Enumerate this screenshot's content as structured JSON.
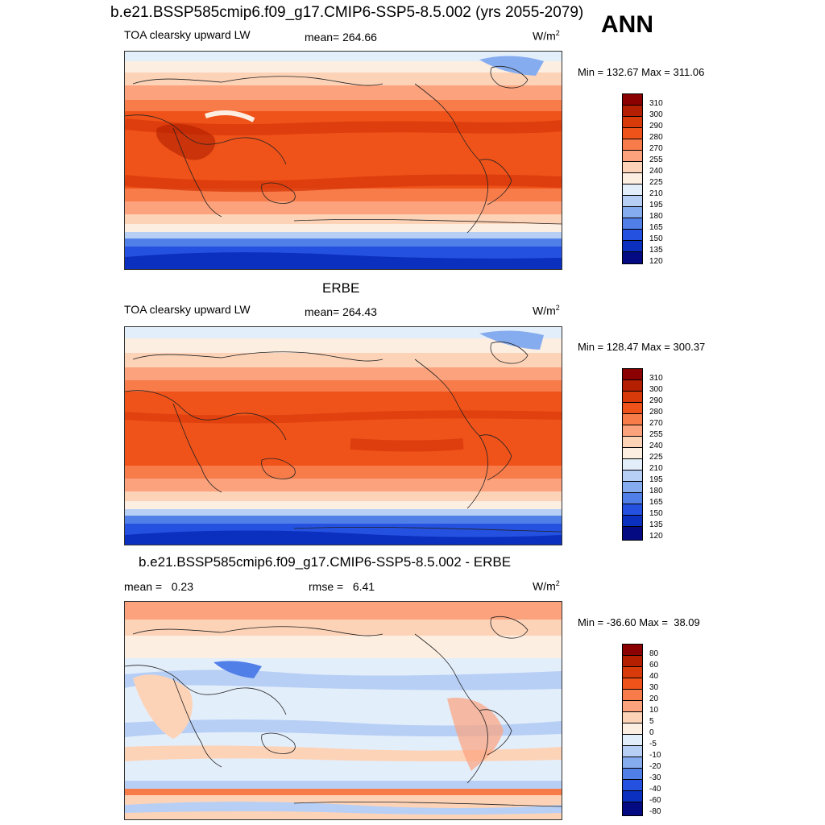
{
  "title_top": "b.e21.BSSP585cmip6.f09_g17.CMIP6-SSP5-8.5.002 (yrs 2055-2079)",
  "season": "ANN",
  "panels": [
    {
      "title": "",
      "left_label": "TOA clearsky upward LW",
      "center_label": "mean= 264.66",
      "units": "W/m",
      "units_sup": "2",
      "minmax": "Min = 132.67 Max = 311.06",
      "colorbar_levels": [
        "310",
        "300",
        "290",
        "280",
        "270",
        "255",
        "240",
        "225",
        "210",
        "195",
        "180",
        "165",
        "150",
        "135",
        "120"
      ]
    },
    {
      "title": "ERBE",
      "left_label": "TOA clearsky upward LW",
      "center_label": "mean= 264.43",
      "units": "W/m",
      "units_sup": "2",
      "minmax": "Min = 128.47 Max = 300.37",
      "colorbar_levels": [
        "310",
        "300",
        "290",
        "280",
        "270",
        "255",
        "240",
        "225",
        "210",
        "195",
        "180",
        "165",
        "150",
        "135",
        "120"
      ]
    },
    {
      "title": "b.e21.BSSP585cmip6.f09_g17.CMIP6-SSP5-8.5.002 - ERBE",
      "left_label": "mean =   0.23",
      "center_label": "rmse =   6.41",
      "units": "W/m",
      "units_sup": "2",
      "minmax": "Min = -36.60 Max =  38.09",
      "colorbar_levels": [
        "80",
        "60",
        "40",
        "30",
        "20",
        "10",
        "5",
        "0",
        "-5",
        "-10",
        "-20",
        "-30",
        "-40",
        "-60",
        "-80"
      ]
    }
  ],
  "colors": {
    "abs_scale": [
      "#8b0000",
      "#b31f00",
      "#d93a0a",
      "#f0531a",
      "#f77c4a",
      "#fca27d",
      "#fdd3b8",
      "#fdeee2",
      "#e3eefb",
      "#b7cff5",
      "#86acf0",
      "#507fe8",
      "#2551e0",
      "#0b2fbe",
      "#030a82"
    ],
    "diff_scale": [
      "#8b0000",
      "#b31f00",
      "#d93a0a",
      "#f0531a",
      "#f77c4a",
      "#fca27d",
      "#fdd3b8",
      "#fdeee2",
      "#e3eefb",
      "#b7cff5",
      "#86acf0",
      "#507fe8",
      "#2551e0",
      "#0b2fbe",
      "#030a82"
    ]
  }
}
